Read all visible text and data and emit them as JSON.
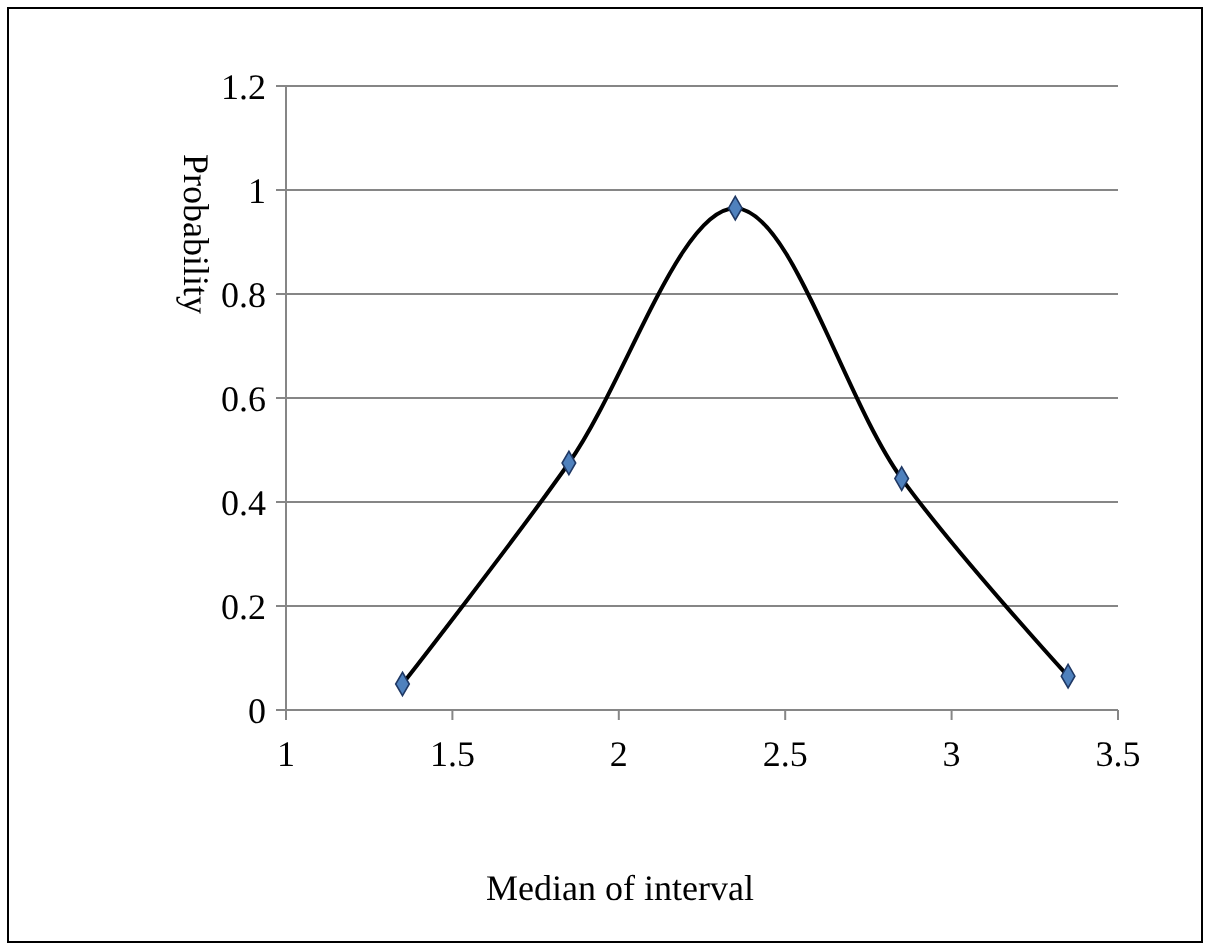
{
  "chart_data": {
    "type": "line",
    "xlabel": "Median of interval",
    "ylabel": "Probability",
    "x": [
      1.35,
      1.85,
      2.35,
      2.85,
      3.35
    ],
    "series": [
      {
        "color": "#000000",
        "marker": "none",
        "values": [
          0.05,
          0.475,
          0.965,
          0.445,
          0.065
        ]
      },
      {
        "type": "scatter",
        "color": "#4f81bd",
        "marker": "diamond",
        "values": [
          0.05,
          0.475,
          0.965,
          0.445,
          0.065
        ]
      }
    ],
    "xlim": [
      1,
      3.5
    ],
    "xticks": [
      1,
      1.5,
      2,
      2.5,
      3,
      3.5
    ],
    "ylim": [
      0,
      1.2
    ],
    "yticks": [
      0,
      0.2,
      0.4,
      0.6,
      0.8,
      1,
      1.2
    ],
    "grid": "y"
  }
}
